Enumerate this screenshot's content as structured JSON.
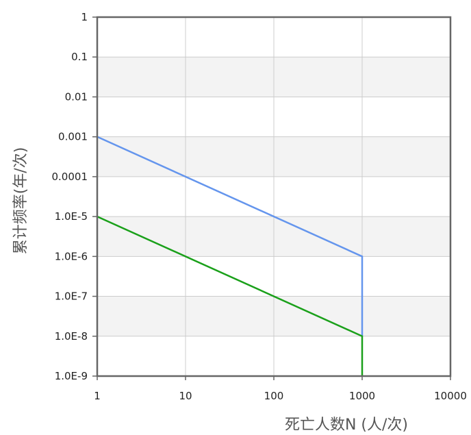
{
  "chart_data": {
    "type": "line",
    "title": "",
    "xlabel": "死亡人数N (人/次)",
    "ylabel": "累计频率(年/次)",
    "xscale": "log",
    "yscale": "log",
    "xlim": [
      1,
      10000
    ],
    "ylim": [
      1e-09,
      1
    ],
    "x_tick_labels": [
      "1",
      "10",
      "100",
      "1000",
      "10000"
    ],
    "y_tick_labels": [
      "1",
      "0.1",
      "0.01",
      "0.001",
      "0.0001",
      "1.0E-5",
      "1.0E-6",
      "1.0E-7",
      "1.0E-8",
      "1.0E-9"
    ],
    "grid": true,
    "legend": "none",
    "series": [
      {
        "color": "#6495ed",
        "x": [
          1,
          1000,
          1000
        ],
        "y": [
          0.001,
          1e-06,
          1e-08
        ]
      },
      {
        "color": "#1aa01a",
        "x": [
          1,
          1000,
          1000
        ],
        "y": [
          1e-05,
          1e-08,
          1e-09
        ]
      }
    ]
  }
}
